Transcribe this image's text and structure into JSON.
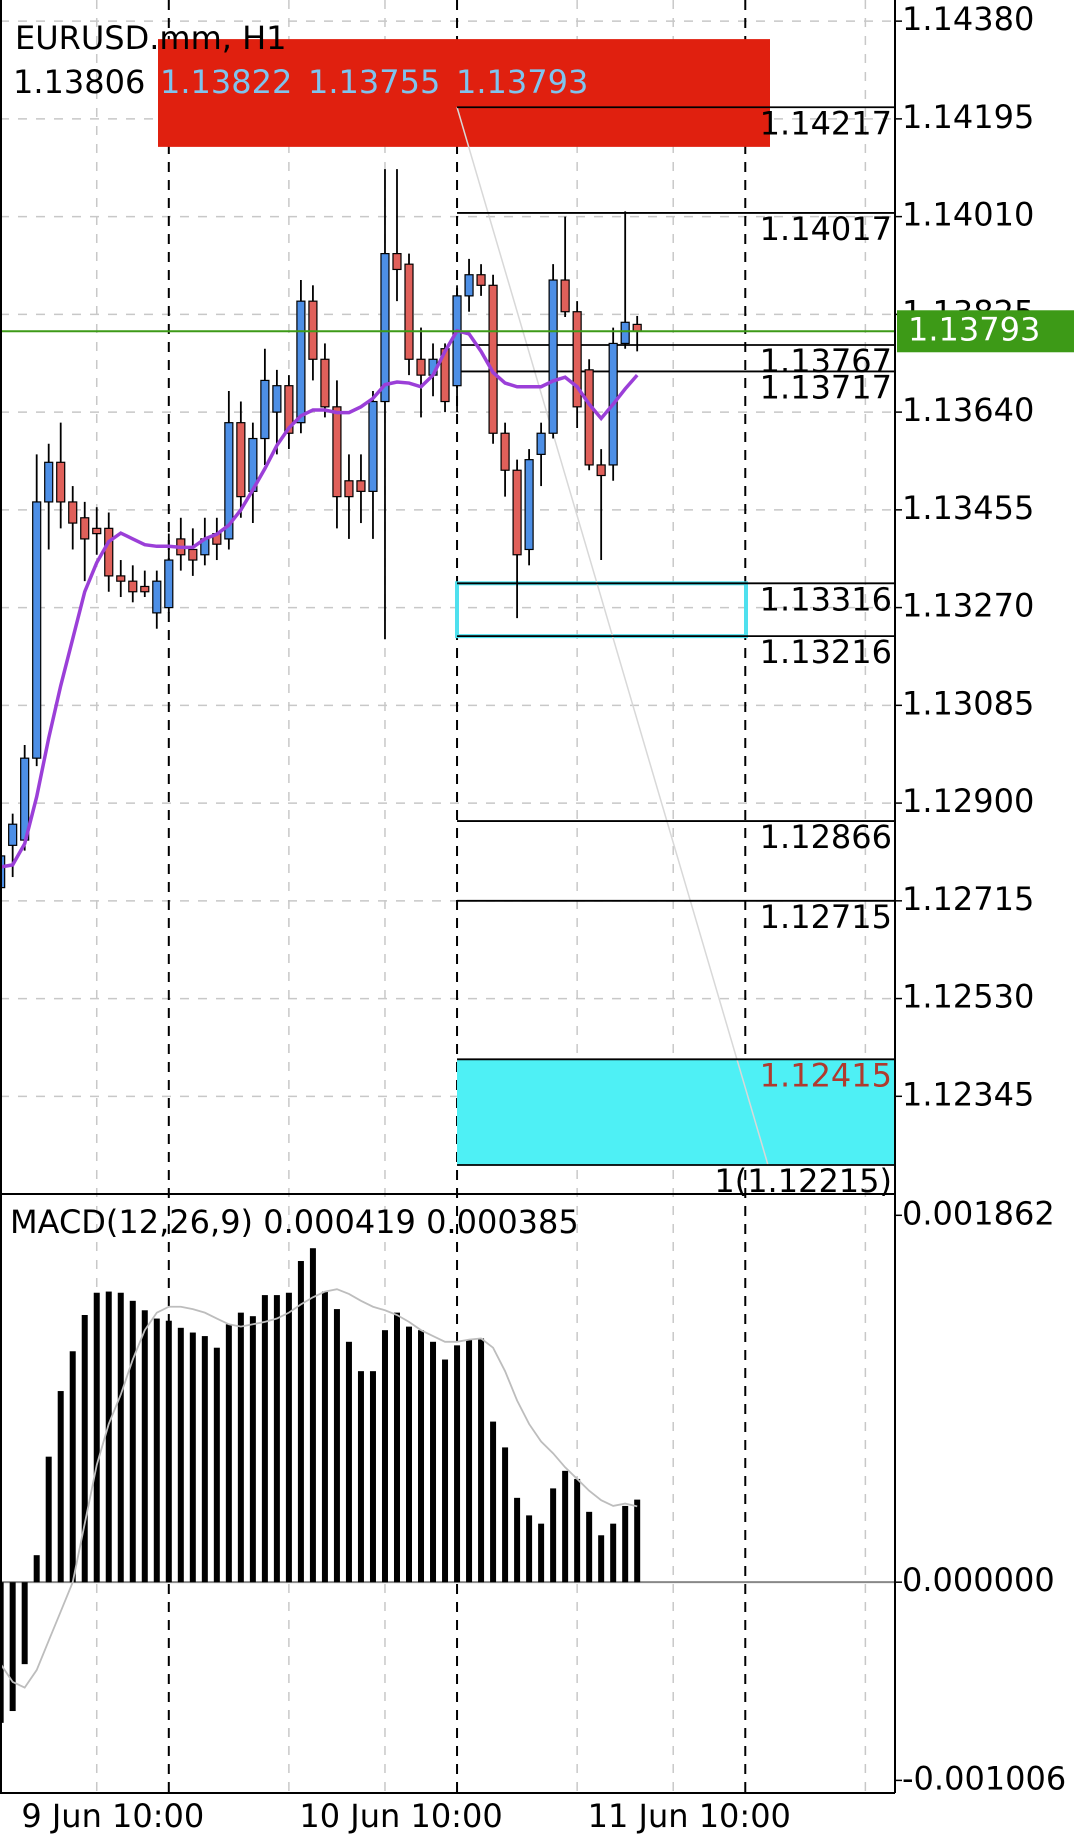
{
  "chart_data": [
    {
      "type": "candlestick",
      "title": "EURUSD.mm, H1",
      "categories": [
        null,
        null,
        null,
        null,
        null,
        null,
        null,
        null,
        null,
        null,
        null,
        null,
        null,
        null,
        "9 Jun 10:00",
        null,
        null,
        null,
        null,
        null,
        null,
        null,
        null,
        null,
        null,
        null,
        null,
        null,
        null,
        null,
        null,
        null,
        null,
        null,
        null,
        null,
        null,
        null,
        "10 Jun 10:00",
        null,
        null,
        null,
        null,
        null,
        null,
        null,
        null,
        null,
        null,
        null,
        null,
        null,
        null,
        null,
        null,
        null,
        null,
        null,
        null,
        null,
        null,
        null,
        "11 Jun 10:00",
        null,
        null,
        null,
        null,
        null,
        null,
        null,
        null,
        null,
        null,
        null,
        null
      ],
      "open": [
        1.1274,
        1.1282,
        1.1283,
        1.12985,
        1.1347,
        1.13545,
        1.1347,
        1.1344,
        1.1342,
        1.1342,
        1.1333,
        1.1332,
        1.1331,
        1.1326,
        1.1327,
        1.134,
        1.1338,
        1.1337,
        1.1341,
        1.134,
        1.1362,
        1.1349,
        1.1359,
        1.1364,
        1.1369,
        1.1362,
        1.1385,
        1.1374,
        1.1365,
        1.1351,
        1.1351,
        1.1349,
        1.1366,
        1.1394,
        1.1392,
        1.1374,
        1.1371,
        1.1376,
        1.1369,
        1.1386,
        1.139,
        1.1388,
        1.136,
        1.1353,
        1.1338,
        1.1356,
        1.136,
        1.1389,
        1.1383,
        1.1372,
        1.1354,
        1.1354,
        1.1377,
        1.13806,
        null,
        null,
        null,
        null,
        null,
        null,
        null,
        null,
        null,
        null,
        null,
        null,
        null,
        null,
        null,
        null,
        null,
        null,
        null,
        null,
        null
      ],
      "high": [
        1.1285,
        1.1288,
        1.1301,
        1.1356,
        1.1358,
        1.1362,
        1.135,
        1.1347,
        1.1346,
        1.1345,
        1.1336,
        1.1335,
        1.1334,
        1.1334,
        1.1341,
        1.1344,
        1.1342,
        1.1344,
        1.1344,
        1.1368,
        1.1366,
        1.1362,
        1.1376,
        1.1372,
        1.1371,
        1.1389,
        1.1388,
        1.1377,
        1.137,
        1.1356,
        1.1356,
        1.1368,
        1.141,
        1.141,
        1.1394,
        1.138,
        1.1377,
        1.1377,
        1.1388,
        1.1393,
        1.1392,
        1.139,
        1.1362,
        1.1355,
        1.1357,
        1.1362,
        1.1392,
        1.1401,
        1.1385,
        1.1374,
        1.1357,
        1.138,
        1.1402,
        1.13822,
        null,
        null,
        null,
        null,
        null,
        null,
        null,
        null,
        null,
        null,
        null,
        null,
        null,
        null,
        null,
        null,
        null,
        null,
        null,
        null,
        null
      ],
      "low": [
        1.1256,
        1.1276,
        1.1281,
        1.1297,
        1.1338,
        1.1342,
        1.1338,
        1.1332,
        1.1337,
        1.133,
        1.1329,
        1.1328,
        1.1329,
        1.1323,
        1.1326,
        1.1334,
        1.1333,
        1.1335,
        1.1336,
        1.1338,
        1.1344,
        1.1343,
        1.1354,
        1.1356,
        1.1357,
        1.136,
        1.137,
        1.1363,
        1.1342,
        1.134,
        1.1343,
        1.134,
        1.1321,
        1.1385,
        1.1371,
        1.1363,
        1.1367,
        1.1364,
        1.1364,
        1.1383,
        1.1386,
        1.1358,
        1.1348,
        1.1325,
        1.1335,
        1.135,
        1.1359,
        1.1382,
        1.1361,
        1.1353,
        1.1336,
        1.1351,
        1.1376,
        1.13755,
        null,
        null,
        null,
        null,
        null,
        null,
        null,
        null,
        null,
        null,
        null,
        null,
        null,
        null,
        null,
        null,
        null,
        null,
        null,
        null,
        null
      ],
      "close": [
        1.128,
        1.1286,
        1.12985,
        1.1347,
        1.13545,
        1.1347,
        1.1343,
        1.134,
        1.1341,
        1.1333,
        1.1332,
        1.133,
        1.133,
        1.1332,
        1.1336,
        1.1337,
        1.1336,
        1.134,
        1.1339,
        1.1362,
        1.1348,
        1.1359,
        1.137,
        1.1369,
        1.136,
        1.1385,
        1.1374,
        1.1365,
        1.1348,
        1.1348,
        1.1349,
        1.1366,
        1.1394,
        1.1391,
        1.1374,
        1.1371,
        1.1374,
        1.1366,
        1.1386,
        1.139,
        1.1388,
        1.136,
        1.1353,
        1.1337,
        1.1355,
        1.136,
        1.1389,
        1.1383,
        1.1365,
        1.1354,
        1.1352,
        1.1377,
        1.1381,
        1.13793,
        null,
        null,
        null,
        null,
        null,
        null,
        null,
        null,
        null,
        null,
        null,
        null,
        null,
        null,
        null,
        null,
        null,
        null,
        null,
        null,
        null
      ],
      "ma_values": [
        1.12779,
        1.12783,
        1.12823,
        1.12912,
        1.13023,
        1.13122,
        1.13211,
        1.133,
        1.13355,
        1.13395,
        1.13411,
        1.134,
        1.13389,
        1.13386,
        1.13386,
        1.13384,
        1.13384,
        1.134,
        1.13409,
        1.13426,
        1.13455,
        1.13493,
        1.13533,
        1.13577,
        1.1361,
        1.13633,
        1.13644,
        1.13644,
        1.13639,
        1.13639,
        1.1365,
        1.13666,
        1.13692,
        1.13697,
        1.13695,
        1.13688,
        1.1371,
        1.13755,
        1.13794,
        1.13788,
        1.13755,
        1.13715,
        1.13695,
        1.13688,
        1.13688,
        1.13688,
        1.13699,
        1.13706,
        1.13688,
        1.13655,
        1.13628,
        1.13655,
        1.13684,
        1.1371,
        null,
        null,
        null,
        null,
        null,
        null,
        null,
        null,
        null,
        null,
        null,
        null,
        null,
        null,
        null,
        null,
        null,
        null,
        null,
        null,
        null
      ],
      "up_color": "#4d8fe6",
      "down_color": "#e0605a",
      "ma_color": "#9b3fd8",
      "price_color": "#3d9a17",
      "ylim": [
        1.12162,
        1.1442
      ],
      "yticks": [
        {
          "value": 1.1438,
          "label": "1.14380"
        },
        {
          "value": 1.14195,
          "label": "1.14195"
        },
        {
          "value": 1.1401,
          "label": "1.14010"
        },
        {
          "value": 1.13825,
          "label": "1.13825"
        },
        {
          "value": 1.1364,
          "label": "1.13640"
        },
        {
          "value": 1.13455,
          "label": "1.13455"
        },
        {
          "value": 1.1327,
          "label": "1.13270"
        },
        {
          "value": 1.13085,
          "label": "1.13085"
        },
        {
          "value": 1.129,
          "label": "1.12900"
        },
        {
          "value": 1.12715,
          "label": "1.12715"
        },
        {
          "value": 1.1253,
          "label": "1.12530"
        },
        {
          "value": 1.12345,
          "label": "1.12345"
        }
      ],
      "grid": true,
      "levels": [
        1.14217,
        1.14017,
        1.13767,
        1.13717,
        1.13316,
        1.13216,
        1.12866,
        1.12715,
        1.12415,
        {
          "value": 1.12215,
          "label": "1(1.12215)"
        }
      ],
      "level_colors": [
        "#000000",
        "#000000",
        "#000000",
        "#000000",
        "#000000",
        "#000000",
        "#000000",
        "#000000",
        "#b03a2e",
        "#000000"
      ],
      "zones": [
        {
          "from": 1.14346,
          "to": 1.14142,
          "color": "#e0200f",
          "filled": true
        },
        {
          "from": 1.13316,
          "to": 1.13216,
          "color": "#4ee0ee",
          "filled": false
        },
        {
          "from": 1.12415,
          "to": 1.12215,
          "color": "#4ef0f5",
          "filled": true
        }
      ]
    },
    {
      "type": "macd",
      "title": "MACD(12,26,9) 0.000419 0.000385",
      "values": [
        -0.000714,
        -0.000654,
        -0.000416,
        0.000137,
        0.000637,
        0.00097,
        0.001172,
        0.001356,
        0.001469,
        0.001475,
        0.001469,
        0.001428,
        0.00138,
        0.001338,
        0.001327,
        0.001291,
        0.001267,
        0.001249,
        0.00119,
        0.001309,
        0.001368,
        0.00135,
        0.001457,
        0.001457,
        0.001469,
        0.00163,
        0.001695,
        0.001475,
        0.001386,
        0.00122,
        0.001071,
        0.001071,
        0.001279,
        0.001368,
        0.001297,
        0.001279,
        0.00122,
        0.00113,
        0.001202,
        0.001231,
        0.001237,
        0.000815,
        0.000684,
        0.000428,
        0.000339,
        0.000297,
        0.000476,
        0.000565,
        0.000524,
        0.000357,
        0.000238,
        0.000297,
        0.000387,
        0.000419,
        null,
        null,
        null,
        null,
        null,
        null,
        null,
        null,
        null,
        null,
        null,
        null,
        null,
        null,
        null,
        null,
        null,
        null,
        null,
        null,
        null
      ],
      "signal_values": [
        -0.000416,
        -0.000506,
        -0.000535,
        -0.000446,
        -0.000297,
        -0.000149,
        0,
        0.000297,
        0.000595,
        0.000803,
        0.000952,
        0.00113,
        0.001279,
        0.001368,
        0.001398,
        0.001398,
        0.001386,
        0.001368,
        0.001338,
        0.001309,
        0.001297,
        0.001309,
        0.001321,
        0.001338,
        0.001368,
        0.00141,
        0.001446,
        0.001475,
        0.001487,
        0.001463,
        0.001428,
        0.001398,
        0.00138,
        0.001356,
        0.001321,
        0.001279,
        0.001249,
        0.00122,
        0.00122,
        0.001231,
        0.001237,
        0.00119,
        0.001071,
        0.000922,
        0.000803,
        0.000714,
        0.000654,
        0.000583,
        0.000524,
        0.000464,
        0.000416,
        0.000387,
        0.000399,
        0.000385,
        null,
        null,
        null,
        null,
        null,
        null,
        null,
        null,
        null,
        null,
        null,
        null,
        null,
        null,
        null,
        null,
        null,
        null,
        null,
        null,
        null
      ],
      "color": "#000000",
      "signal_color": "#bdbdbd",
      "ylim": [
        -0.00107,
        0.00196
      ],
      "yticks": [
        0.001862,
        {
          "value": 0,
          "label": "0.000000"
        },
        -0.001006
      ]
    }
  ]
}
